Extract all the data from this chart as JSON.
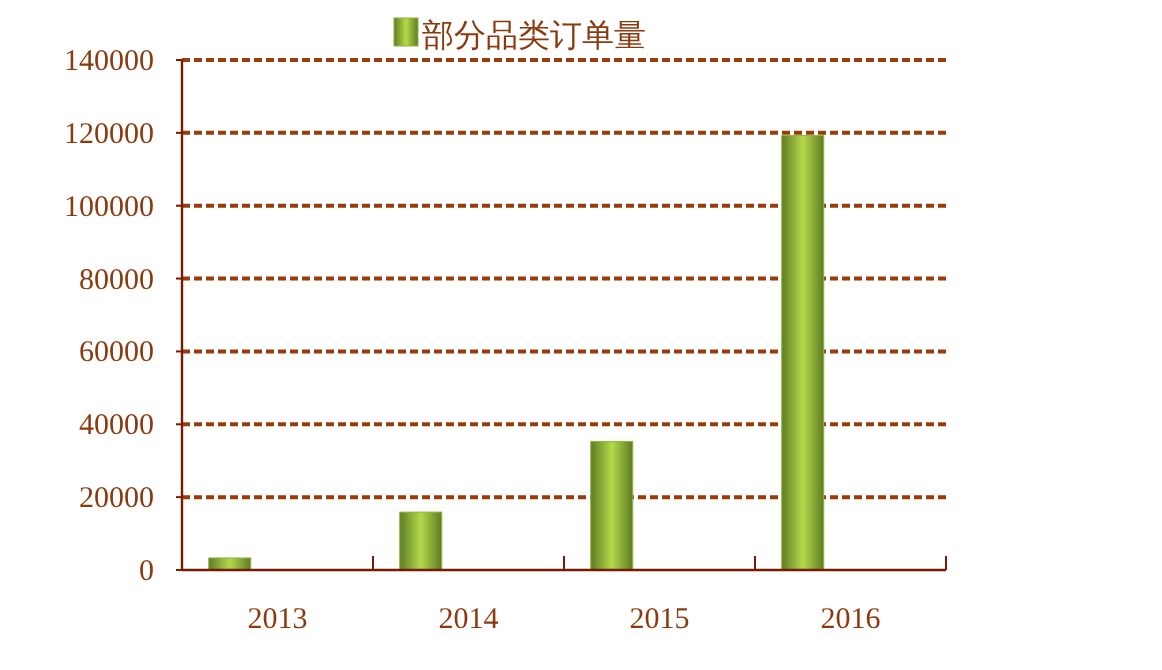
{
  "chart_data": {
    "type": "bar",
    "categories": [
      "2013",
      "2014",
      "2015",
      "2016"
    ],
    "series": [
      {
        "name": "部分品类订单量",
        "color": "#8cb43a",
        "values": [
          3300,
          15900,
          35300,
          119300
        ]
      }
    ],
    "ylim": [
      0,
      140000
    ],
    "yticks": [
      0,
      20000,
      40000,
      60000,
      80000,
      100000,
      120000,
      140000
    ],
    "grid": "y",
    "legend": "top"
  }
}
